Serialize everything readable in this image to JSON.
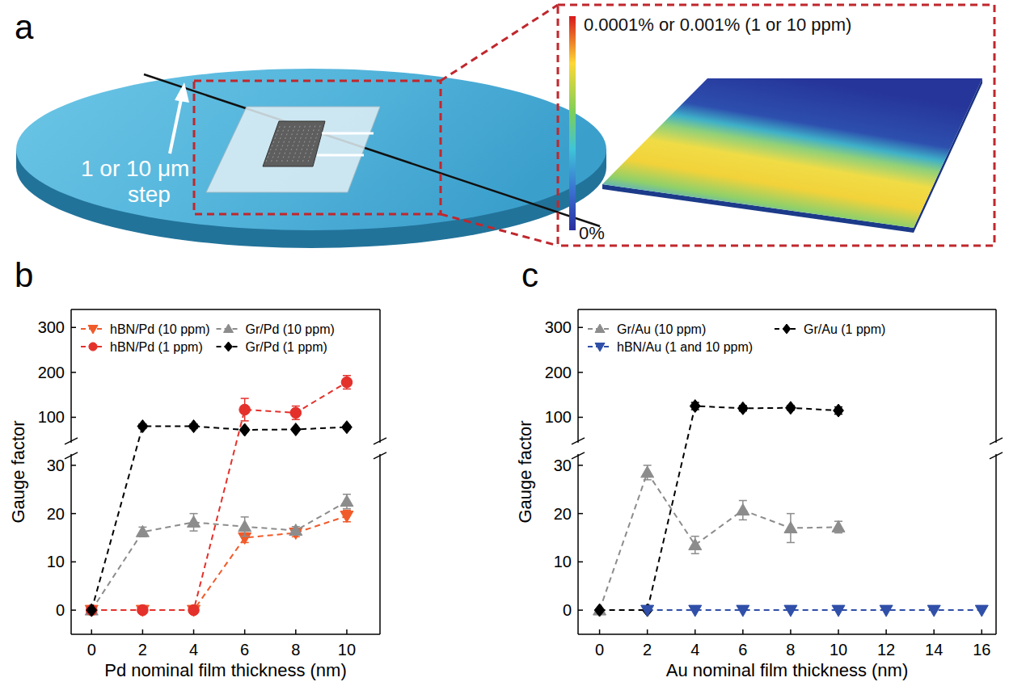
{
  "diagram": {
    "panel_label": "a",
    "step_label": [
      "1 or 10 μm",
      "step"
    ],
    "colorbar_max_label": "0.0001% or 0.001% (1 or 10 ppm)",
    "colorbar_min_label": "0%"
  },
  "chart_data": [
    {
      "type": "line",
      "panel_label": "b",
      "x_label": "Pd nominal film thickness (nm)",
      "y_label": "Gauge factor",
      "xlim": [
        -0.8,
        11.3
      ],
      "xticks": [
        0,
        2,
        4,
        6,
        8,
        10
      ],
      "ylim": [
        -5,
        340
      ],
      "y_break": [
        32,
        47
      ],
      "yticks": [
        0,
        10,
        20,
        30,
        100,
        200,
        300
      ],
      "grid": false,
      "legend": "top",
      "series": [
        {
          "name": "hBN/Pd (10 ppm)",
          "color": "#f15a29",
          "marker": "triangle-down",
          "line_style": "dashed",
          "x": [
            0,
            2,
            4,
            6,
            8,
            10
          ],
          "values": [
            0,
            0,
            0,
            15,
            16,
            19.5
          ],
          "errors": [
            0,
            0,
            0,
            1,
            0.8,
            1.2
          ]
        },
        {
          "name": "Gr/Pd (10 ppm)",
          "color": "#8c8c8c",
          "marker": "triangle",
          "line_style": "dashed",
          "x": [
            0,
            2,
            4,
            6,
            8,
            10
          ],
          "values": [
            0,
            16.2,
            18.2,
            17.3,
            16.5,
            22.5
          ],
          "errors": [
            0,
            1,
            1.8,
            2,
            0.8,
            1.5
          ]
        },
        {
          "name": "hBN/Pd (1 ppm)",
          "color": "#e4312b",
          "marker": "circle",
          "line_style": "dashed",
          "x": [
            0,
            2,
            4,
            6,
            8,
            10
          ],
          "values": [
            0,
            0,
            0,
            117,
            110,
            178
          ],
          "errors": [
            0,
            0,
            0,
            25,
            15,
            15
          ]
        },
        {
          "name": "Gr/Pd (1 ppm)",
          "color": "#000000",
          "marker": "diamond",
          "line_style": "dashed",
          "x": [
            0,
            2,
            4,
            6,
            8,
            10
          ],
          "values": [
            0,
            80,
            80,
            72,
            73,
            78
          ],
          "errors": [
            0,
            5,
            5,
            3,
            3,
            4
          ]
        }
      ]
    },
    {
      "type": "line",
      "panel_label": "c",
      "x_label": "Au nominal film thickness (nm)",
      "y_label": "Gauge factor",
      "xlim": [
        -0.9,
        16.6
      ],
      "xticks": [
        0,
        2,
        4,
        6,
        8,
        10,
        12,
        14,
        16
      ],
      "ylim": [
        -5,
        340
      ],
      "y_break": [
        32,
        47
      ],
      "yticks": [
        0,
        10,
        20,
        30,
        100,
        200,
        300
      ],
      "grid": false,
      "legend": "top",
      "series": [
        {
          "name": "Gr/Au (10 ppm)",
          "color": "#8c8c8c",
          "marker": "triangle",
          "line_style": "dashed",
          "x": [
            0,
            2,
            4,
            6,
            8,
            10
          ],
          "values": [
            0,
            28.5,
            13.5,
            20.7,
            17,
            17.2
          ],
          "errors": [
            0,
            1.5,
            1.8,
            2,
            3,
            1.2
          ]
        },
        {
          "name": "Gr/Au (1 ppm)",
          "color": "#000000",
          "marker": "diamond",
          "line_style": "dashed",
          "x": [
            0,
            2,
            4,
            6,
            8,
            10
          ],
          "values": [
            0,
            0,
            125,
            120,
            121,
            115
          ],
          "errors": [
            0,
            0,
            8,
            6,
            5,
            8
          ]
        },
        {
          "name": "hBN/Au (1 and 10 ppm)",
          "color": "#2f4fa8",
          "marker": "triangle-down",
          "line_style": "dashed",
          "x": [
            2,
            4,
            6,
            8,
            10,
            12,
            14,
            16
          ],
          "values": [
            0,
            0,
            0,
            0,
            0,
            0,
            0,
            0
          ]
        }
      ]
    }
  ]
}
